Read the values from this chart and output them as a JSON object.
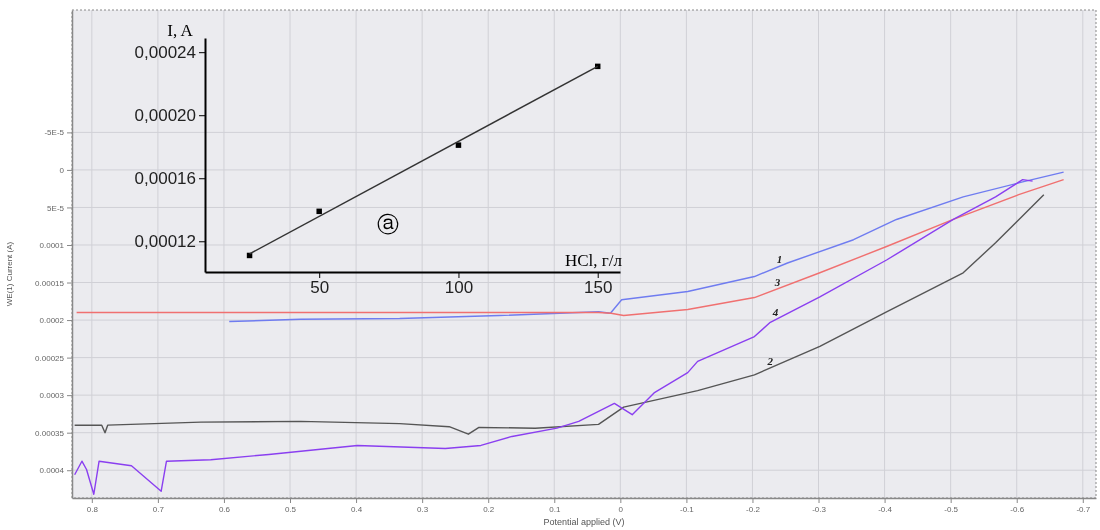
{
  "chart_data": [
    {
      "type": "line",
      "xlabel": "Potential applied (V)",
      "ylabel": "WE(1) Current (A)",
      "xlim": [
        0.83,
        -0.72
      ],
      "ylim": [
        0.000437,
        -0.000213
      ],
      "xticks": [
        0.8,
        0.7,
        0.6,
        0.5,
        0.4,
        0.3,
        0.2,
        0.1,
        0,
        -0.1,
        -0.2,
        -0.3,
        -0.4,
        -0.5,
        -0.6,
        -0.7
      ],
      "yticks": [
        {
          "value": -5e-05,
          "label": "-5E-5"
        },
        0,
        {
          "value": 5e-05,
          "label": "5E-5"
        },
        0.0001,
        0.00015,
        0.0002,
        0.00025,
        0.0003,
        0.00035,
        0.0004
      ],
      "grid": true,
      "line_style": "solid",
      "series": [
        {
          "color": "#6f7cf0",
          "x": [
            0.592,
            0.484,
            0.334,
            0.183,
            0.063,
            0.033,
            0.015,
            -0.002,
            -0.102,
            -0.203,
            -0.253,
            -0.353,
            -0.418,
            -0.519,
            -0.609,
            -0.671
          ],
          "values": [
            0.000202,
            0.000199,
            0.000198,
            0.000194,
            0.00019,
            0.000189,
            0.000191,
            0.000173,
            0.000162,
            0.000142,
            0.000124,
            9.3e-05,
            6.6e-05,
            3.6e-05,
            1.6e-05,
            3e-06
          ]
        },
        {
          "color": "#555555",
          "x": [
            0.826,
            0.785,
            0.78,
            0.776,
            0.635,
            0.484,
            0.334,
            0.259,
            0.23,
            0.214,
            0.129,
            0.033,
            -0.005,
            -0.117,
            -0.203,
            -0.302,
            -0.403,
            -0.519,
            -0.568,
            -0.641
          ],
          "values": [
            0.00034,
            0.00034,
            0.00035,
            0.00034,
            0.000336,
            0.000335,
            0.000338,
            0.000342,
            0.000352,
            0.000343,
            0.000344,
            0.000339,
            0.000316,
            0.000294,
            0.000273,
            0.000235,
            0.000189,
            0.000137,
            9.7e-05,
            3.3e-05
          ]
        },
        {
          "color": "#f07070",
          "x": [
            0.823,
            0.635,
            0.409,
            0.183,
            0.033,
            0.014,
            -0.005,
            -0.102,
            -0.203,
            -0.302,
            -0.403,
            -0.504,
            -0.603,
            -0.671
          ],
          "values": [
            0.00019,
            0.00019,
            0.00019,
            0.00019,
            0.00019,
            0.000191,
            0.000194,
            0.000186,
            0.00017,
            0.000137,
            0.000102,
            6.6e-05,
            3.3e-05,
            1.3e-05
          ]
        },
        {
          "color": "#8a3ff0",
          "x": [
            0.826,
            0.815,
            0.808,
            0.797,
            0.789,
            0.74,
            0.695,
            0.687,
            0.62,
            0.532,
            0.398,
            0.265,
            0.211,
            0.164,
            0.096,
            0.063,
            0.009,
            -0.018,
            -0.051,
            -0.102,
            -0.117,
            -0.203,
            -0.227,
            -0.302,
            -0.403,
            -0.504,
            -0.568,
            -0.609,
            -0.624
          ],
          "values": [
            0.000406,
            0.000388,
            0.000399,
            0.000432,
            0.000388,
            0.000394,
            0.000428,
            0.000388,
            0.000386,
            0.000379,
            0.000367,
            0.000371,
            0.000367,
            0.000355,
            0.000344,
            0.000335,
            0.000311,
            0.000326,
            0.000297,
            0.00027,
            0.000255,
            0.000222,
            0.000203,
            0.000169,
            0.00012,
            6.6e-05,
            3.6e-05,
            1.3e-05,
            1.5e-05
          ]
        }
      ],
      "annotations": [
        {
          "text": "1",
          "x": -0.241,
          "y": 0.000128
        },
        {
          "text": "3",
          "x": -0.238,
          "y": 0.000158
        },
        {
          "text": "4",
          "x": -0.235,
          "y": 0.000199
        },
        {
          "text": "2",
          "x": -0.227,
          "y": 0.000264
        }
      ]
    },
    {
      "type": "scatter",
      "xlabel": "HCl, г/л",
      "ylabel": "I, A",
      "xlim": [
        9,
        158
      ],
      "ylim": [
        0.0001005,
        0.000249
      ],
      "xticks": [
        50,
        100,
        150
      ],
      "yticks": [
        {
          "value": 0.00012,
          "label": "0,00012"
        },
        {
          "value": 0.00016,
          "label": "0,00016"
        },
        {
          "value": 0.0002,
          "label": "0,00020"
        },
        {
          "value": 0.00024,
          "label": "0,00024"
        }
      ],
      "grid": false,
      "series": [
        {
          "marker": "square",
          "color": "#000000",
          "x": [
            25,
            50,
            100,
            150
          ],
          "values": [
            0.000111,
            0.000139,
            0.000181,
            0.000231
          ]
        },
        {
          "type": "line",
          "marker": "none",
          "color": "#333333",
          "x": [
            25,
            150
          ],
          "values": [
            0.000112,
            0.000231
          ]
        }
      ],
      "annotations": [
        "ⓐ"
      ]
    }
  ]
}
